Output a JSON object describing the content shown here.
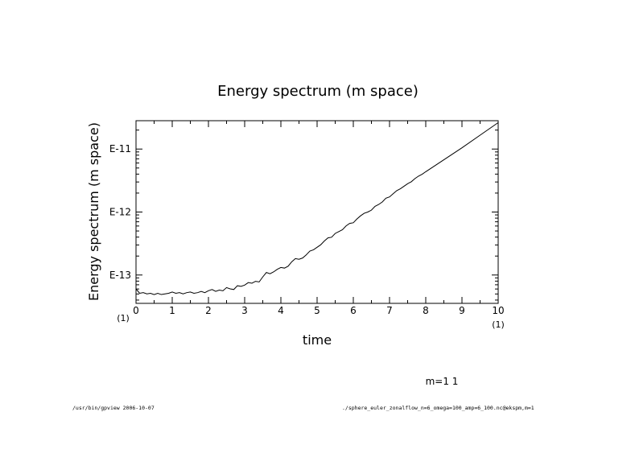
{
  "chart_data": {
    "type": "line",
    "title": "Energy spectrum (m space)",
    "xlabel": "time",
    "ylabel": "Energy spectrum (m space)",
    "xlim": [
      0,
      10
    ],
    "ylim_log10": [
      -13.45,
      -10.55
    ],
    "y_scale": "log",
    "grid": false,
    "x_ticks": [
      0,
      1,
      2,
      3,
      4,
      5,
      6,
      7,
      8,
      9,
      10
    ],
    "x_tick_labels": [
      "0",
      "1",
      "2",
      "3",
      "4",
      "5",
      "6",
      "7",
      "8",
      "9",
      "10"
    ],
    "y_ticks_log10": [
      -13,
      -12,
      -11
    ],
    "y_tick_labels": [
      "E-13",
      "E-12",
      "E-11"
    ],
    "x_scale_left": "(1)",
    "x_scale_right": "(1)",
    "series": [
      {
        "color": "#000000",
        "x": [
          0,
          0.1,
          0.2,
          0.3,
          0.4,
          0.5,
          0.6,
          0.7,
          0.8,
          0.9,
          1.0,
          1.1,
          1.2,
          1.3,
          1.4,
          1.5,
          1.6,
          1.7,
          1.8,
          1.9,
          2.0,
          2.1,
          2.2,
          2.3,
          2.4,
          2.5,
          2.6,
          2.7,
          2.8,
          2.9,
          3.0,
          3.1,
          3.2,
          3.3,
          3.4,
          3.5,
          3.6,
          3.7,
          3.8,
          3.9,
          4.0,
          4.1,
          4.2,
          4.3,
          4.4,
          4.5,
          4.6,
          4.7,
          4.8,
          4.9,
          5.0,
          5.1,
          5.2,
          5.3,
          5.4,
          5.5,
          5.6,
          5.7,
          5.8,
          5.9,
          6.0,
          6.1,
          6.2,
          6.3,
          6.4,
          6.5,
          6.6,
          6.7,
          6.8,
          6.9,
          7.0,
          7.1,
          7.2,
          7.3,
          7.4,
          7.5,
          7.6,
          7.7,
          7.8,
          7.9,
          8.0,
          8.5,
          9.0,
          9.5,
          10.0
        ],
        "y_log10": [
          -13.22,
          -13.29,
          -13.28,
          -13.3,
          -13.29,
          -13.31,
          -13.29,
          -13.31,
          -13.3,
          -13.29,
          -13.27,
          -13.29,
          -13.28,
          -13.3,
          -13.28,
          -13.27,
          -13.29,
          -13.28,
          -13.26,
          -13.28,
          -13.25,
          -13.23,
          -13.26,
          -13.24,
          -13.25,
          -13.2,
          -13.22,
          -13.23,
          -13.17,
          -13.18,
          -13.16,
          -13.12,
          -13.13,
          -13.1,
          -13.11,
          -13.03,
          -12.96,
          -12.98,
          -12.95,
          -12.91,
          -12.88,
          -12.89,
          -12.86,
          -12.79,
          -12.74,
          -12.75,
          -12.73,
          -12.68,
          -12.62,
          -12.6,
          -12.56,
          -12.52,
          -12.46,
          -12.41,
          -12.4,
          -12.34,
          -12.31,
          -12.28,
          -12.22,
          -12.18,
          -12.17,
          -12.11,
          -12.06,
          -12.02,
          -12.0,
          -11.97,
          -11.91,
          -11.88,
          -11.84,
          -11.78,
          -11.76,
          -11.71,
          -11.66,
          -11.63,
          -11.59,
          -11.55,
          -11.52,
          -11.47,
          -11.43,
          -11.4,
          -11.36,
          -11.17,
          -10.98,
          -10.78,
          -10.58
        ]
      }
    ]
  },
  "annotations": {
    "mode_label": "m=1 1",
    "footer_left": "/usr/bin/gpview  2006-10-07",
    "footer_right": "./sphere_euler_zonalflow_n=6_omega=100_amp=6_100.nc@ekspm,m=1"
  }
}
